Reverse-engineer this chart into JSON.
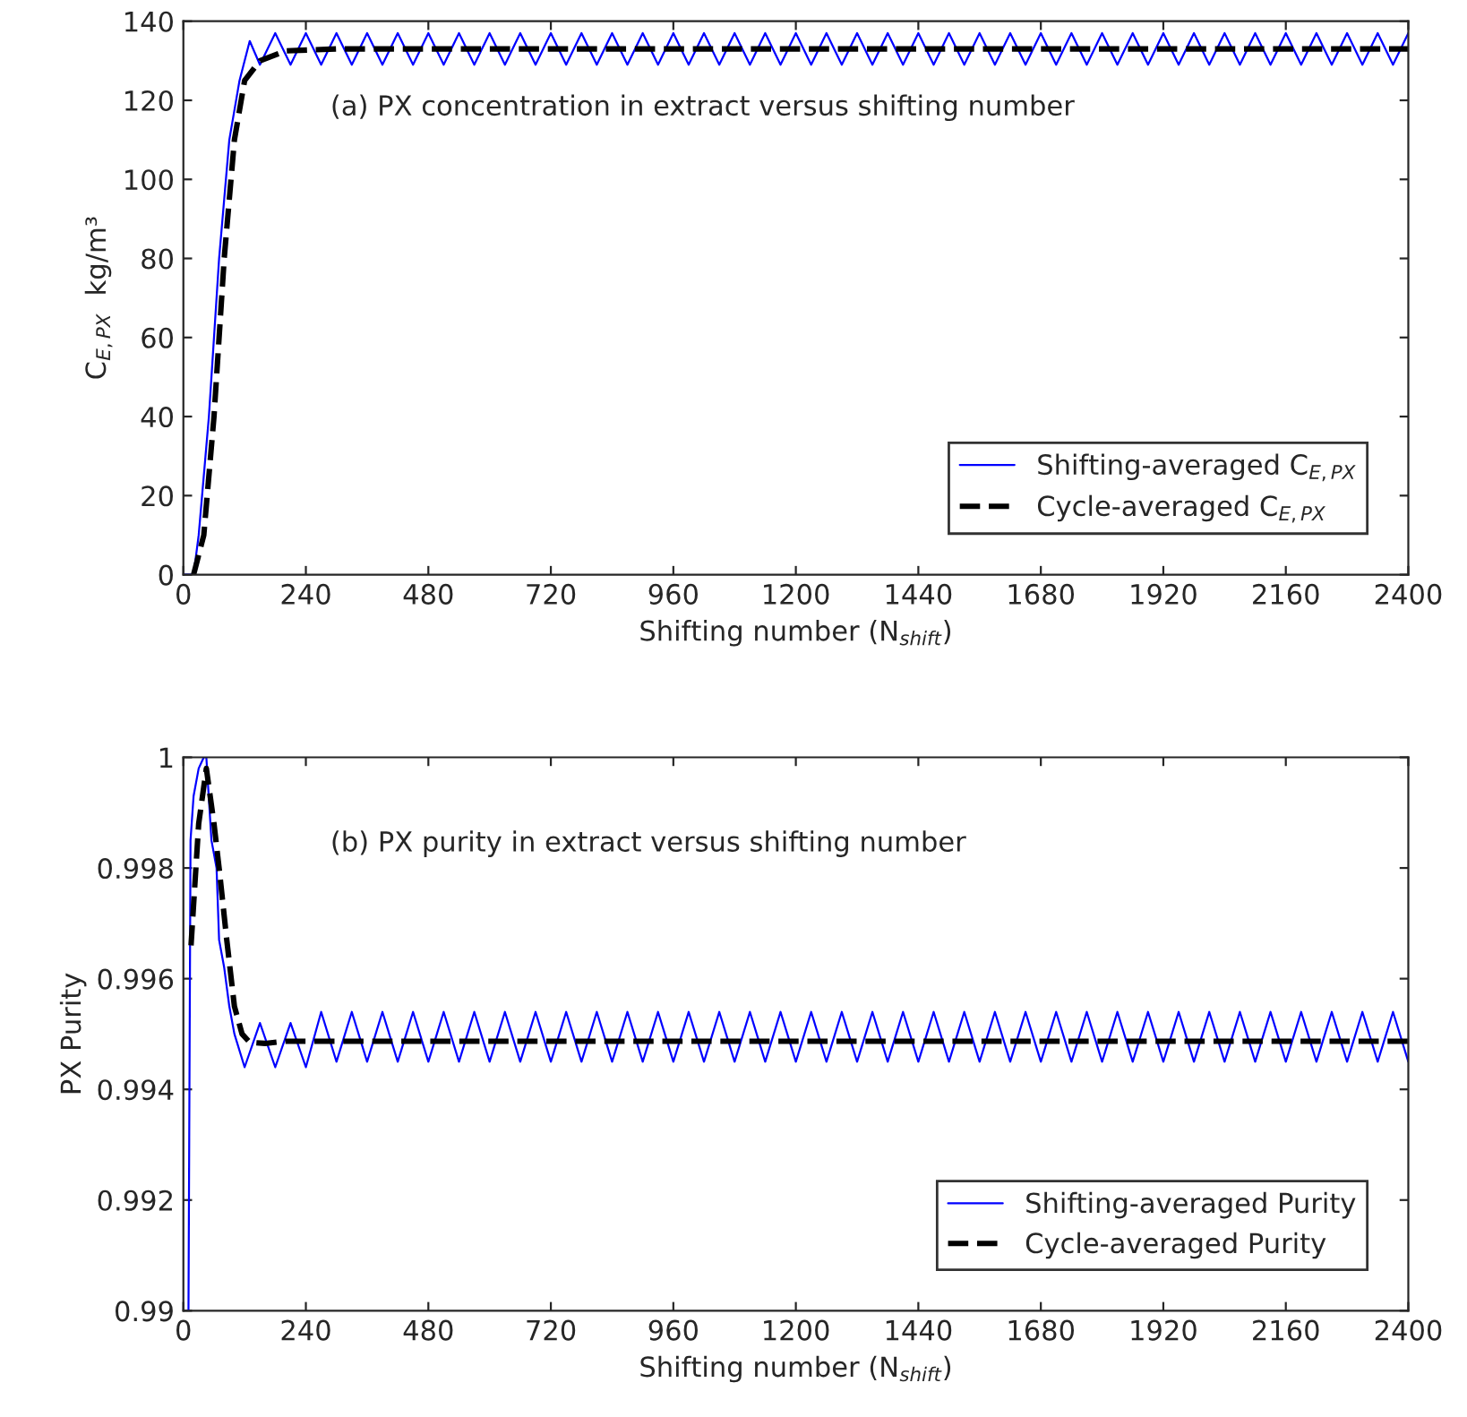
{
  "chart_data": [
    {
      "type": "line",
      "xlabel": "Shifting number (N$_{shift}$)",
      "ylabel": "C$_{E,PX}$  kg/m³",
      "annotations": [
        "(a) PX concentration in extract versus shifting number"
      ],
      "xlim": [
        0,
        2400
      ],
      "xticks": [
        0,
        240,
        480,
        720,
        960,
        1200,
        1440,
        1680,
        1920,
        2160,
        2400
      ],
      "ylim": [
        0,
        140
      ],
      "yticks": [
        0,
        20,
        40,
        60,
        80,
        100,
        120,
        140
      ],
      "legend": "bottom right",
      "grid": false,
      "series": [
        {
          "name": "Shifting-averaged C$_{E,PX}$",
          "color": "#0000ff",
          "line_style": "solid",
          "x": [
            0,
            20,
            30,
            50,
            70,
            90,
            110,
            130,
            150,
            180,
            210,
            240,
            270,
            300,
            330,
            360,
            390,
            420,
            450,
            480,
            510,
            540,
            570,
            600,
            630,
            660,
            690,
            720,
            750,
            780,
            810,
            840,
            870,
            900,
            930,
            960,
            990,
            1020,
            1050,
            1080,
            1110,
            1140,
            1170,
            1200,
            1230,
            1260,
            1290,
            1320,
            1350,
            1380,
            1410,
            1440,
            1470,
            1500,
            1530,
            1560,
            1590,
            1620,
            1650,
            1680,
            1710,
            1740,
            1770,
            1800,
            1830,
            1860,
            1890,
            1920,
            1950,
            1980,
            2010,
            2040,
            2070,
            2100,
            2130,
            2160,
            2190,
            2220,
            2250,
            2280,
            2310,
            2340,
            2370,
            2400
          ],
          "values": [
            0,
            0,
            10,
            40,
            80,
            110,
            125,
            135,
            129,
            137,
            129,
            137,
            129,
            137,
            129,
            137,
            129,
            137,
            129,
            137,
            129,
            137,
            129,
            137,
            129,
            137,
            129,
            137,
            129,
            137,
            129,
            137,
            129,
            137,
            129,
            137,
            129,
            137,
            129,
            137,
            129,
            137,
            129,
            137,
            129,
            137,
            129,
            137,
            129,
            137,
            129,
            137,
            129,
            137,
            129,
            137,
            129,
            137,
            129,
            137,
            129,
            137,
            129,
            137,
            129,
            137,
            129,
            137,
            129,
            137,
            129,
            137,
            129,
            137,
            129,
            137,
            129,
            137,
            129,
            137,
            129,
            137,
            129,
            137
          ]
        },
        {
          "name": "Cycle-averaged C$_{E,PX}$",
          "color": "#000000",
          "line_style": "dashed",
          "x": [
            20,
            40,
            60,
            80,
            100,
            120,
            150,
            200,
            300,
            2400
          ],
          "values": [
            0,
            10,
            40,
            80,
            110,
            125,
            130,
            132.5,
            133,
            133
          ]
        }
      ]
    },
    {
      "type": "line",
      "xlabel": "Shifting number (N$_{shift}$)",
      "ylabel": "PX Purity",
      "annotations": [
        "(b) PX purity in extract versus shifting number"
      ],
      "xlim": [
        0,
        2400
      ],
      "xticks": [
        0,
        240,
        480,
        720,
        960,
        1200,
        1440,
        1680,
        1920,
        2160,
        2400
      ],
      "ylim": [
        0.99,
        1
      ],
      "yticks": [
        0.99,
        0.992,
        0.994,
        0.996,
        0.998,
        1
      ],
      "legend": "bottom right",
      "grid": false,
      "series": [
        {
          "name": "Shifting-averaged Purity",
          "color": "#0000ff",
          "line_style": "solid",
          "x": [
            10,
            14,
            20,
            30,
            40,
            45,
            55,
            65,
            70,
            80,
            90,
            100,
            120,
            150,
            180,
            210,
            240,
            270,
            300,
            330,
            360,
            390,
            420,
            450,
            480,
            510,
            540,
            570,
            600,
            630,
            660,
            690,
            720,
            750,
            780,
            810,
            840,
            870,
            900,
            930,
            960,
            990,
            1020,
            1050,
            1080,
            1110,
            1140,
            1170,
            1200,
            1230,
            1260,
            1290,
            1320,
            1350,
            1380,
            1410,
            1440,
            1470,
            1500,
            1530,
            1560,
            1590,
            1620,
            1650,
            1680,
            1710,
            1740,
            1770,
            1800,
            1830,
            1860,
            1890,
            1920,
            1950,
            1980,
            2010,
            2040,
            2070,
            2100,
            2130,
            2160,
            2190,
            2220,
            2250,
            2280,
            2310,
            2340,
            2370,
            2400
          ],
          "values": [
            0.99,
            0.9985,
            0.9993,
            0.9998,
            1,
            1,
            0.9985,
            0.998,
            0.9967,
            0.9962,
            0.9955,
            0.995,
            0.9944,
            0.9952,
            0.9944,
            0.9952,
            0.9944,
            0.9954,
            0.9945,
            0.9954,
            0.9945,
            0.9954,
            0.9945,
            0.9954,
            0.9945,
            0.9954,
            0.9945,
            0.9954,
            0.9945,
            0.9954,
            0.9945,
            0.9954,
            0.9945,
            0.9954,
            0.9945,
            0.9954,
            0.9945,
            0.9954,
            0.9945,
            0.9954,
            0.9945,
            0.9954,
            0.9945,
            0.9954,
            0.9945,
            0.9954,
            0.9945,
            0.9954,
            0.9945,
            0.9954,
            0.9945,
            0.9954,
            0.9945,
            0.9954,
            0.9945,
            0.9954,
            0.9945,
            0.9954,
            0.9945,
            0.9954,
            0.9945,
            0.9954,
            0.9945,
            0.9954,
            0.9945,
            0.9954,
            0.9945,
            0.9954,
            0.9945,
            0.9954,
            0.9945,
            0.9954,
            0.9945,
            0.9954,
            0.9945,
            0.9954,
            0.9945,
            0.9954,
            0.9945,
            0.9954,
            0.9945,
            0.9954,
            0.9945,
            0.9954,
            0.9945,
            0.9954,
            0.9945,
            0.9954,
            0.9945
          ]
        },
        {
          "name": "Cycle-averaged Purity",
          "color": "#000000",
          "line_style": "dashed",
          "x": [
            15,
            30,
            45,
            60,
            70,
            85,
            100,
            115,
            130,
            160,
            200,
            300,
            2400
          ],
          "values": [
            0.9966,
            0.9988,
            0.9998,
            0.9988,
            0.998,
            0.9967,
            0.9955,
            0.995,
            0.99485,
            0.99483,
            0.99487,
            0.99487,
            0.99487
          ]
        }
      ]
    }
  ]
}
